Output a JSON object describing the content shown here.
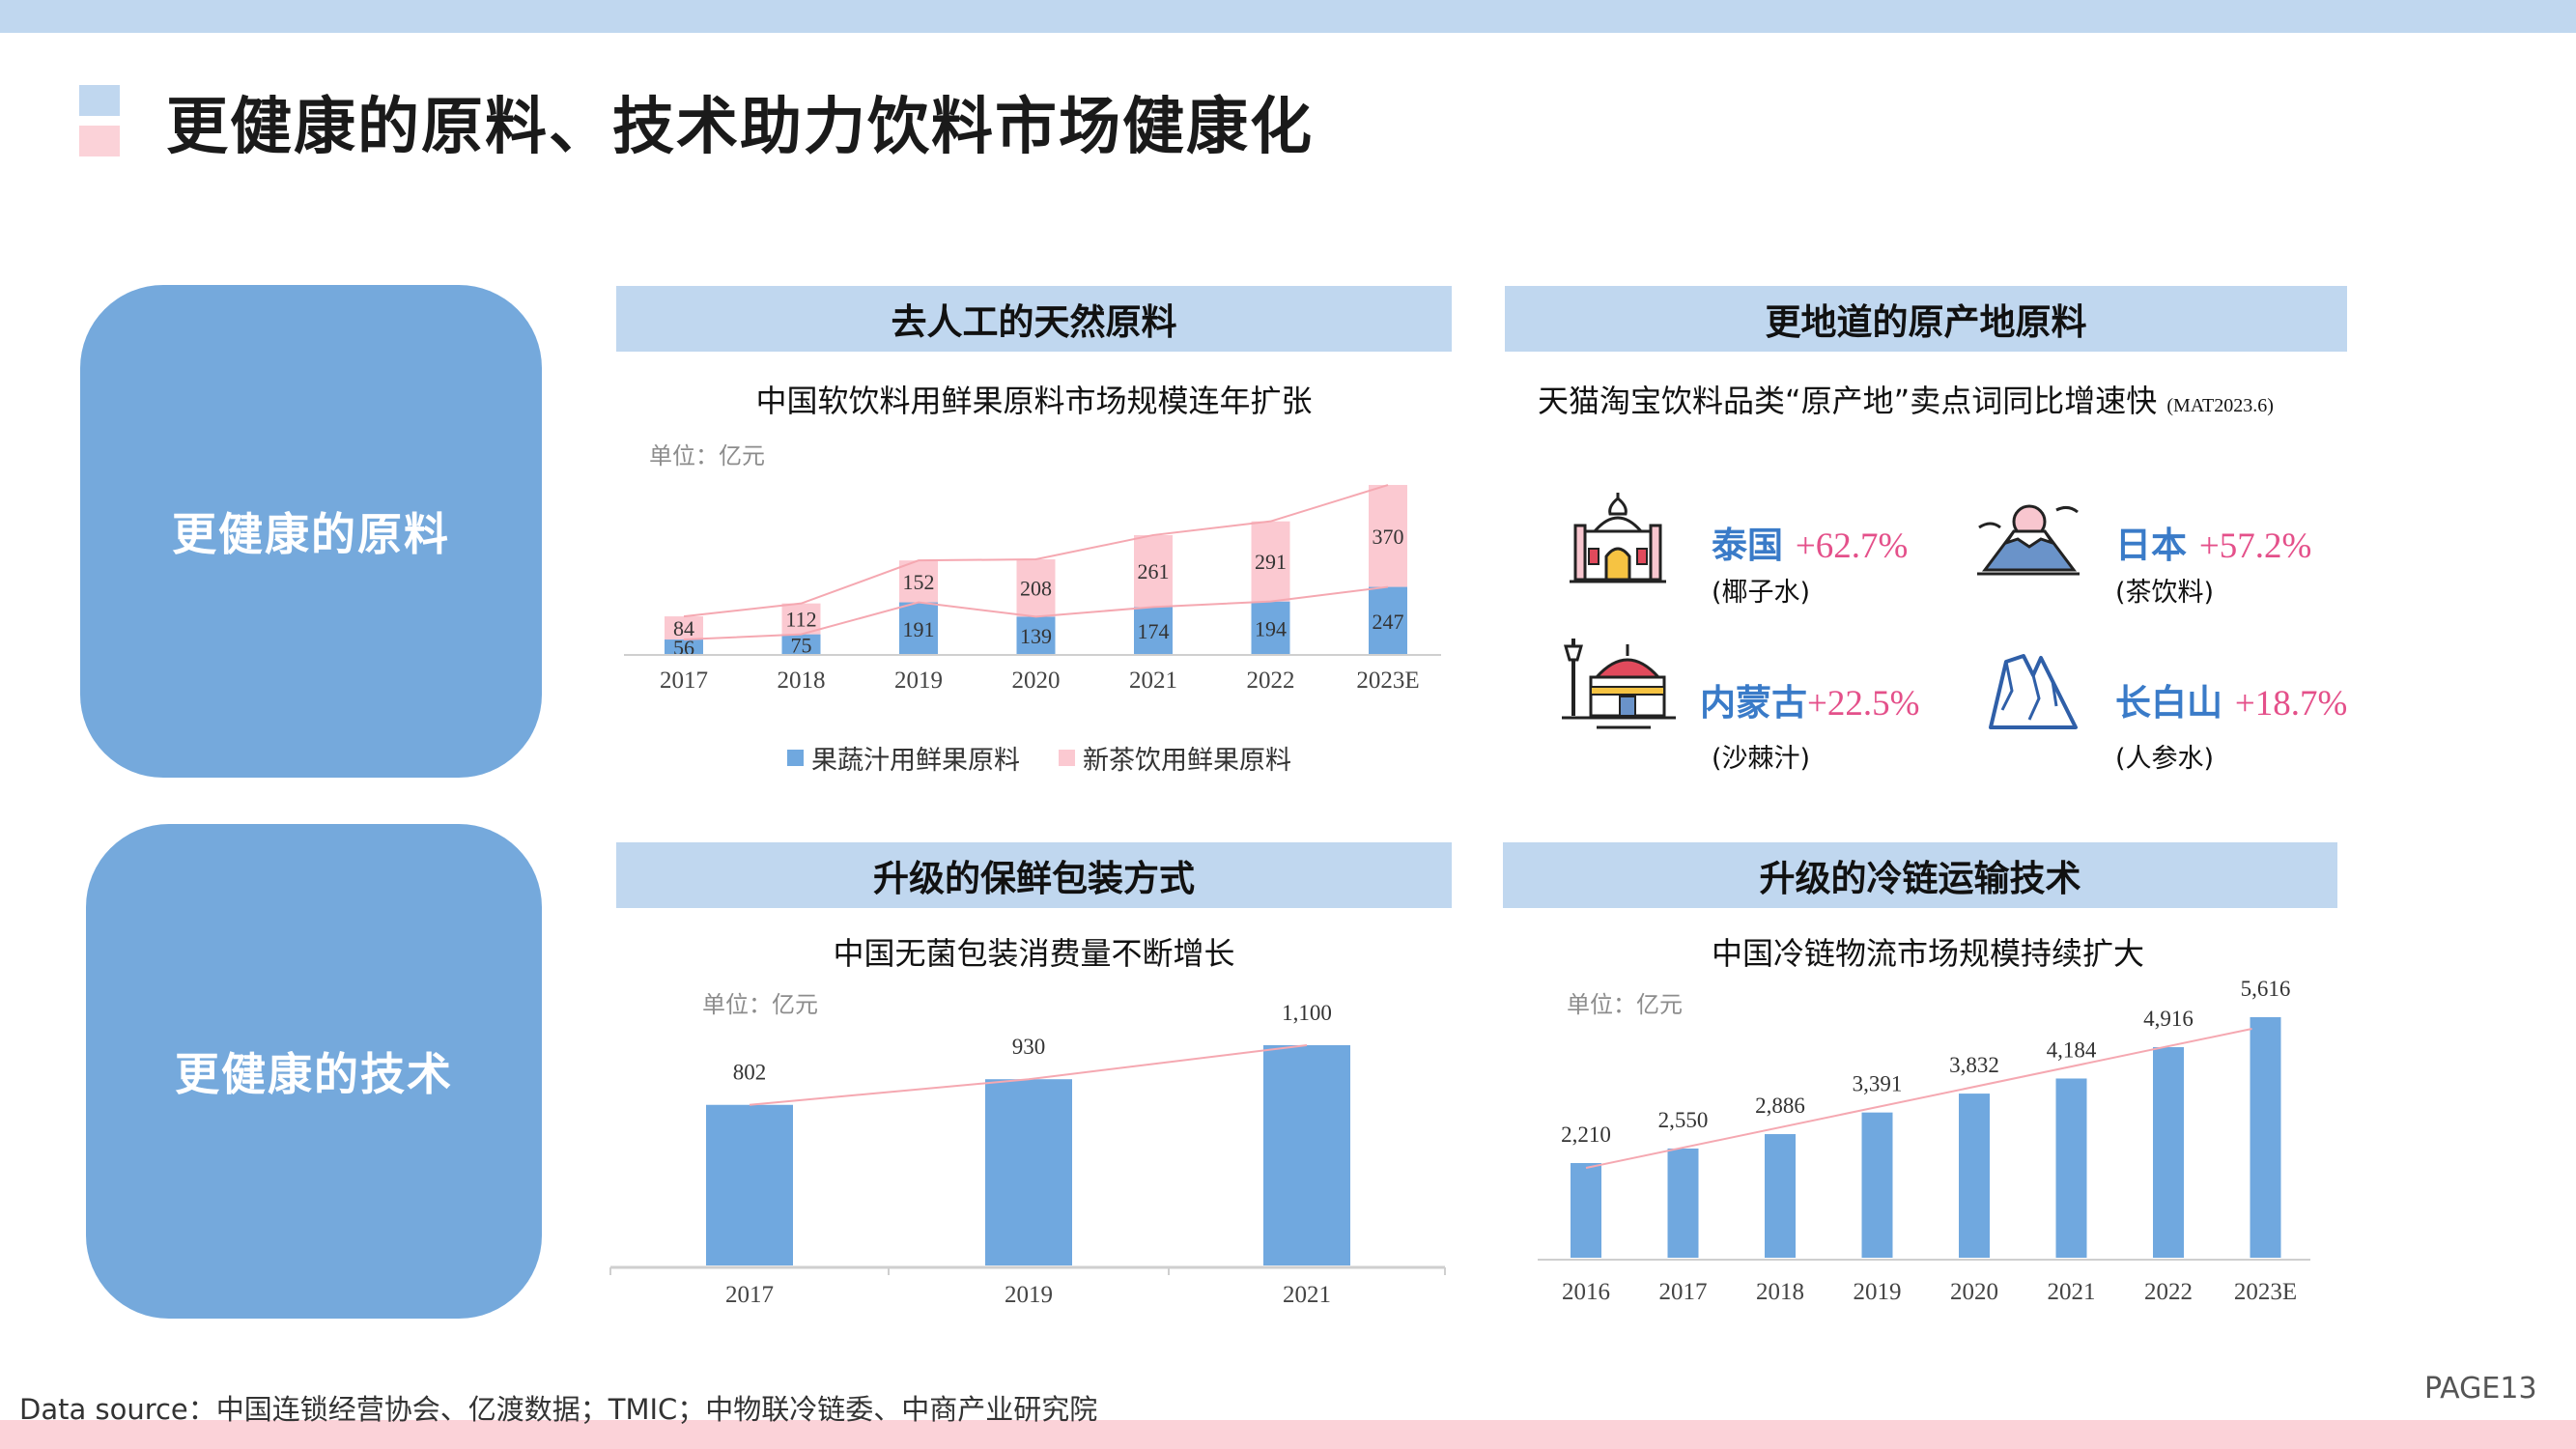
{
  "title": "更健康的原料、技术助力饮料市场健康化",
  "colors": {
    "accent_blue": "#75a9dc",
    "bar_blue": "#70a8df",
    "pink": "#fbc9d1",
    "header_bg": "#c0d7ef",
    "growth_pink": "#e4508a",
    "region_blue": "#3a7bc8",
    "line_pink": "#f5a8b1"
  },
  "left_blocks": {
    "raw": "更健康的原料",
    "tech": "更健康的技术"
  },
  "panels": {
    "natural": {
      "header": "去人工的天然原料",
      "subtitle": "中国软饮料用鲜果原料市场规模连年扩张",
      "unit": "单位：亿元"
    },
    "origin": {
      "header": "更地道的原产地原料",
      "subtitle": "天猫淘宝饮料品类“原产地”卖点词同比增速快",
      "note": "(MAT2023.6)"
    },
    "packaging": {
      "header": "升级的保鲜包装方式",
      "subtitle": "中国无菌包装消费量不断增长",
      "unit": "单位：亿元"
    },
    "coldchain": {
      "header": "升级的冷链运输技术",
      "subtitle": "中国冷链物流市场规模持续扩大",
      "unit": "单位：亿元"
    }
  },
  "origins": [
    {
      "region": "泰国",
      "growth": "+62.7%",
      "product": "(椰子水)",
      "icon": "temple-icon"
    },
    {
      "region": "日本",
      "growth": "+57.2%",
      "product": "(茶饮料)",
      "icon": "mount-fuji-icon"
    },
    {
      "region": "内蒙古",
      "growth": "+22.5%",
      "product": "(沙棘汁)",
      "icon": "yurt-icon"
    },
    {
      "region": "长白山",
      "growth": "+18.7%",
      "product": "(人参水)",
      "icon": "mountain-icon"
    }
  ],
  "chart_data": [
    {
      "type": "bar",
      "stacked": true,
      "title": "中国软饮料用鲜果原料市场规模连年扩张",
      "unit": "单位：亿元",
      "categories": [
        "2017",
        "2018",
        "2019",
        "2020",
        "2021",
        "2022",
        "2023E"
      ],
      "series": [
        {
          "name": "果蔬汁用鲜果原料",
          "values": [
            56,
            75,
            191,
            139,
            174,
            194,
            247
          ]
        },
        {
          "name": "新茶饮用鲜果原料",
          "values": [
            84,
            112,
            152,
            208,
            261,
            291,
            370
          ]
        }
      ],
      "trend_lines": true,
      "legend": "bottom"
    },
    {
      "type": "bar",
      "title": "中国无菌包装消费量不断增长",
      "unit": "单位：亿元",
      "categories": [
        "2017",
        "2019",
        "2021"
      ],
      "values": [
        802,
        930,
        1100
      ],
      "labels": [
        "802",
        "930",
        "1,100"
      ],
      "trend_line": true
    },
    {
      "type": "bar",
      "title": "中国冷链物流市场规模持续扩大",
      "unit": "单位：亿元",
      "categories": [
        "2016",
        "2017",
        "2018",
        "2019",
        "2020",
        "2021",
        "2022",
        "2023E"
      ],
      "values": [
        2210,
        2550,
        2886,
        3391,
        3832,
        4184,
        4916,
        5616
      ],
      "labels": [
        "2,210",
        "2,550",
        "2,886",
        "3,391",
        "3,832",
        "4,184",
        "4,916",
        "5,616"
      ],
      "trend_line": true
    }
  ],
  "footer": {
    "source": "Data source：中国连锁经营协会、亿渡数据；TMIC；中物联冷链委、中商产业研究院",
    "page": "PAGE13"
  }
}
